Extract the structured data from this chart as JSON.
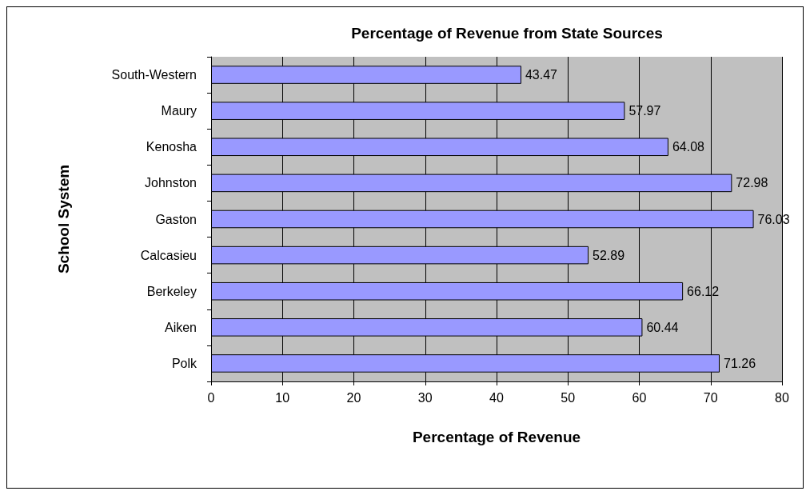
{
  "chart_data": {
    "type": "bar",
    "orientation": "horizontal",
    "title": "Percentage of Revenue from State Sources",
    "xlabel": "Percentage of Revenue",
    "ylabel": "School System",
    "categories": [
      "South-Western",
      "Maury",
      "Kenosha",
      "Johnston",
      "Gaston",
      "Calcasieu",
      "Berkeley",
      "Aiken",
      "Polk"
    ],
    "values": [
      43.47,
      57.97,
      64.08,
      72.98,
      76.03,
      52.89,
      66.12,
      60.44,
      71.26
    ],
    "color": "#9999ff",
    "xlim": [
      0,
      80
    ],
    "xticks": [
      0,
      10,
      20,
      30,
      40,
      50,
      60,
      70,
      80
    ],
    "grid": "x",
    "data_labels": true
  }
}
